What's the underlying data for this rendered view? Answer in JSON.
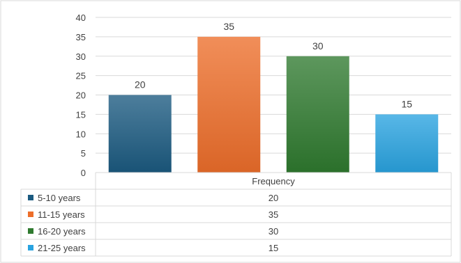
{
  "chart_data": {
    "type": "bar",
    "categories": [
      "Frequency"
    ],
    "series": [
      {
        "name": "5-10 years",
        "values": [
          20
        ],
        "color": "#1b5a80"
      },
      {
        "name": "11-15 years",
        "values": [
          35
        ],
        "color": "#ed6e2a"
      },
      {
        "name": "16-20 years",
        "values": [
          30
        ],
        "color": "#2f7a2f"
      },
      {
        "name": "21-25 years",
        "values": [
          15
        ],
        "color": "#29a3e0"
      }
    ],
    "ylim": [
      0,
      40
    ],
    "yticks": [
      0,
      5,
      10,
      15,
      20,
      25,
      30,
      35,
      40
    ],
    "grid": true,
    "data_labels": true,
    "legend": "data-table-below"
  }
}
